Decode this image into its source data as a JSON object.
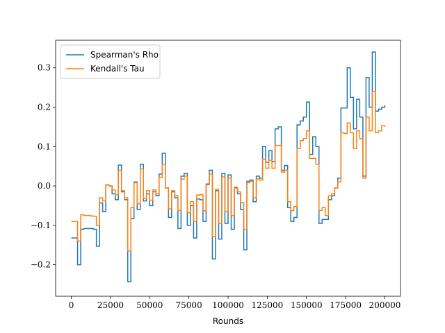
{
  "chart_data": {
    "type": "line",
    "step": true,
    "title": "",
    "xlabel": "Rounds",
    "ylabel": "",
    "xlim": [
      -10000,
      210000
    ],
    "ylim": [
      -0.28,
      0.37
    ],
    "xticks": [
      0,
      25000,
      50000,
      75000,
      100000,
      125000,
      150000,
      175000,
      200000
    ],
    "xtick_labels": [
      "0",
      "25000",
      "50000",
      "75000",
      "100000",
      "125000",
      "150000",
      "175000",
      "200000"
    ],
    "yticks": [
      -0.2,
      -0.1,
      0.0,
      0.1,
      0.2,
      0.3
    ],
    "ytick_labels": [
      "−0.2",
      "−0.1",
      "0.0",
      "0.1",
      "0.2",
      "0.3"
    ],
    "grid": false,
    "legend_position": "top-left",
    "x": [
      0,
      2000,
      4000,
      6000,
      8000,
      10000,
      12000,
      14000,
      16000,
      18000,
      20000,
      22000,
      24000,
      26000,
      28000,
      30000,
      32000,
      34000,
      36000,
      38000,
      40000,
      42000,
      44000,
      46000,
      48000,
      50000,
      52000,
      54000,
      56000,
      58000,
      60000,
      62000,
      64000,
      66000,
      68000,
      70000,
      72000,
      74000,
      76000,
      78000,
      80000,
      82000,
      84000,
      86000,
      88000,
      90000,
      92000,
      94000,
      96000,
      98000,
      100000,
      102000,
      104000,
      106000,
      108000,
      110000,
      112000,
      114000,
      116000,
      118000,
      120000,
      122000,
      124000,
      126000,
      128000,
      130000,
      132000,
      134000,
      136000,
      138000,
      140000,
      142000,
      144000,
      146000,
      148000,
      150000,
      152000,
      154000,
      156000,
      158000,
      160000,
      162000,
      164000,
      166000,
      168000,
      170000,
      172000,
      174000,
      176000,
      178000,
      180000,
      182000,
      184000,
      186000,
      188000,
      190000,
      192000,
      194000,
      196000,
      198000,
      200000
    ],
    "series": [
      {
        "name": "Spearman's Rho",
        "color": "#1f77b4",
        "values": [
          -0.132,
          -0.132,
          -0.2,
          -0.11,
          -0.108,
          -0.108,
          -0.108,
          -0.11,
          -0.153,
          -0.043,
          -0.065,
          0.003,
          0.0,
          -0.02,
          -0.035,
          0.053,
          -0.015,
          -0.035,
          -0.243,
          -0.083,
          0.01,
          -0.06,
          0.055,
          -0.038,
          -0.02,
          -0.05,
          -0.015,
          -0.025,
          0.03,
          0.083,
          -0.005,
          -0.08,
          -0.015,
          -0.03,
          -0.108,
          0.025,
          0.032,
          -0.1,
          -0.05,
          -0.132,
          -0.033,
          -0.035,
          -0.09,
          0.005,
          0.04,
          -0.185,
          -0.012,
          -0.135,
          0.032,
          -0.095,
          0.028,
          -0.11,
          -0.005,
          -0.02,
          -0.06,
          -0.162,
          0.012,
          0.015,
          -0.04,
          0.025,
          0.02,
          0.1,
          0.06,
          0.09,
          0.062,
          0.145,
          0.15,
          0.04,
          0.052,
          -0.055,
          -0.09,
          -0.08,
          0.155,
          0.165,
          0.175,
          0.213,
          0.08,
          0.125,
          0.1,
          -0.095,
          -0.085,
          -0.085,
          -0.035,
          -0.025,
          -0.005,
          0.02,
          0.198,
          0.198,
          0.3,
          0.225,
          0.145,
          0.22,
          0.175,
          0.025,
          0.275,
          0.2,
          0.34,
          0.19,
          0.195,
          0.2,
          0.205
        ]
      },
      {
        "name": "Kendall's Tau",
        "color": "#ff7f0e",
        "values": [
          -0.09,
          -0.09,
          -0.14,
          -0.073,
          -0.075,
          -0.075,
          -0.076,
          -0.077,
          -0.1,
          -0.03,
          -0.038,
          0.003,
          0.0,
          -0.01,
          -0.022,
          0.04,
          -0.012,
          -0.03,
          -0.165,
          -0.055,
          0.008,
          -0.045,
          0.043,
          -0.032,
          -0.012,
          -0.036,
          -0.01,
          -0.02,
          0.022,
          0.055,
          -0.005,
          -0.058,
          -0.012,
          -0.025,
          -0.062,
          0.017,
          0.025,
          -0.068,
          -0.04,
          -0.09,
          -0.023,
          -0.022,
          -0.063,
          0.003,
          0.03,
          -0.128,
          -0.008,
          -0.095,
          0.023,
          -0.065,
          0.02,
          -0.075,
          -0.003,
          -0.015,
          -0.042,
          -0.11,
          0.008,
          0.012,
          -0.03,
          0.018,
          0.015,
          0.068,
          0.045,
          0.065,
          0.045,
          0.103,
          0.103,
          0.035,
          0.04,
          -0.04,
          -0.063,
          -0.052,
          0.095,
          0.115,
          0.12,
          0.14,
          0.07,
          0.07,
          0.055,
          -0.062,
          -0.055,
          -0.075,
          -0.025,
          -0.02,
          -0.005,
          0.01,
          0.135,
          0.133,
          0.16,
          0.135,
          0.095,
          0.14,
          0.12,
          0.02,
          0.175,
          0.14,
          0.24,
          0.135,
          0.14,
          0.153,
          0.15
        ]
      }
    ]
  }
}
